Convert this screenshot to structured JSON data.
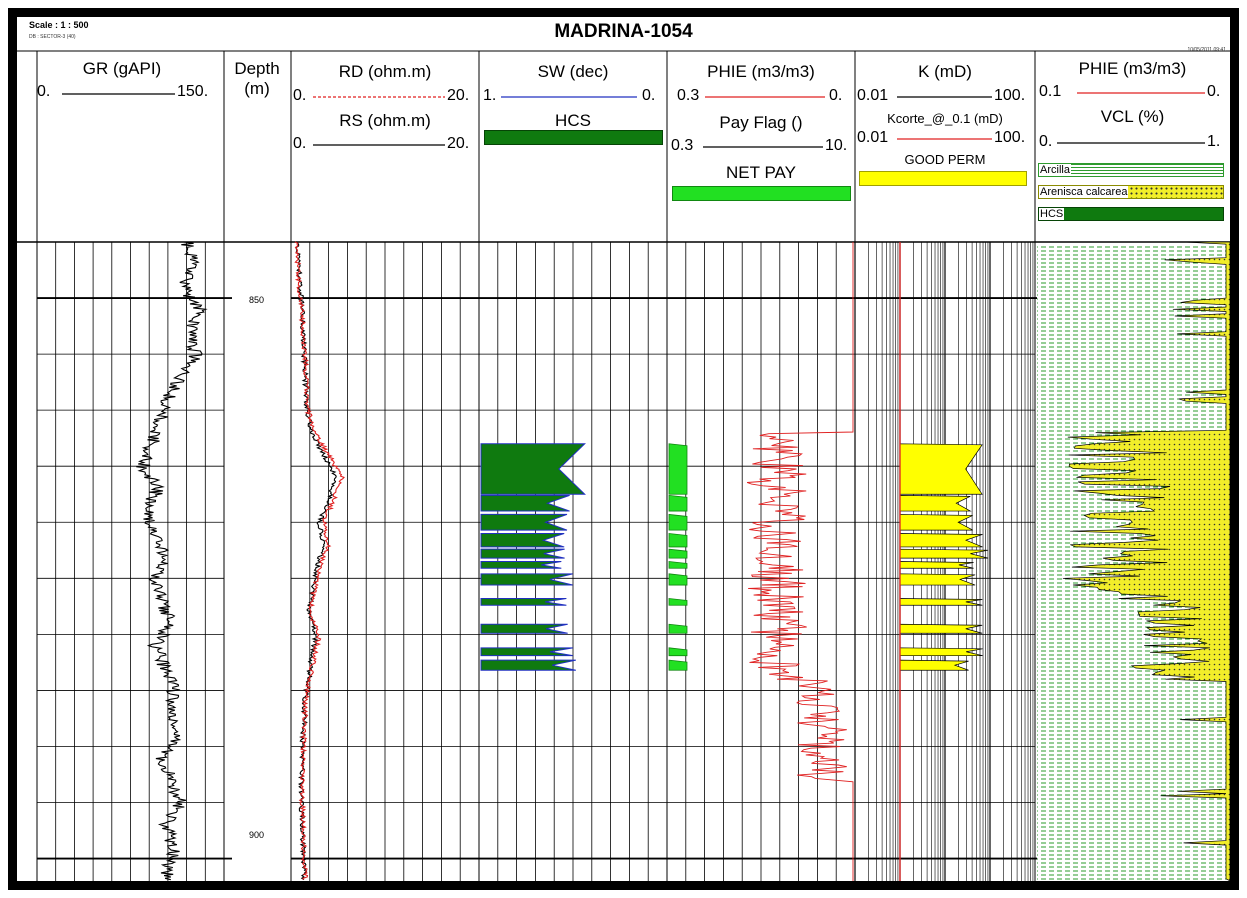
{
  "header": {
    "scale": "Scale : 1 : 500",
    "db": "DB : SECTOR-3 (40)",
    "title": "MADRINA-1054",
    "date": "10/05/2011 09:41"
  },
  "tracks": {
    "gr": {
      "label": "GR (gAPI)",
      "min": "0.",
      "max": "150."
    },
    "depth": {
      "label_line1": "Depth",
      "label_line2": "(m)"
    },
    "resist": {
      "rd_label": "RD (ohm.m)",
      "rd_min": "0.",
      "rd_max": "20.",
      "rs_label": "RS (ohm.m)",
      "rs_min": "0.",
      "rs_max": "20."
    },
    "sw": {
      "label": "SW (dec)",
      "min": "1.",
      "max": "0.",
      "fill_label": "HCS"
    },
    "phie": {
      "label": "PHIE (m3/m3)",
      "min": "0.3",
      "max": "0.",
      "pay_label": "Pay Flag ()",
      "pay_min": "0.3",
      "pay_max": "10.",
      "netpay_label": "NET PAY"
    },
    "perm": {
      "label": "K (mD)",
      "min": "0.01",
      "max": "100.",
      "kc_label": "Kcorte_@_0.1 (mD)",
      "kc_min": "0.01",
      "kc_max": "100.",
      "good_label": "GOOD PERM"
    },
    "lith": {
      "phie_label": "PHIE (m3/m3)",
      "phie_min": "0.1",
      "phie_max": "0.",
      "vcl_label": "VCL (%)",
      "vcl_min": "0.",
      "vcl_max": "1.",
      "legend": [
        "Arcilla",
        "Arenisca calcarea",
        "HCS"
      ]
    }
  },
  "colors": {
    "hcs": "#0f7a0f",
    "netpay": "#22e022",
    "goodperm": "#ffff00",
    "sand": "#f2ee2a",
    "shale": "#2e9b2e",
    "red": "#e02020",
    "blue": "#2030c0"
  },
  "chart_data": {
    "type": "line",
    "title": "MADRINA-1054",
    "xlabel": "",
    "ylabel": "Depth (m)",
    "ylim": [
      845,
      902
    ],
    "depth_ticks": [
      850,
      900
    ],
    "hcs_zones": [
      [
        863.0,
        867.5
      ],
      [
        867.6,
        869.0
      ],
      [
        869.3,
        870.7
      ],
      [
        871.0,
        872.2
      ],
      [
        872.4,
        873.2
      ],
      [
        873.5,
        874.1
      ],
      [
        874.6,
        875.6
      ],
      [
        876.8,
        877.4
      ],
      [
        879.1,
        879.9
      ],
      [
        881.2,
        881.9
      ],
      [
        882.3,
        883.2
      ]
    ],
    "series": [
      {
        "name": "GR (gAPI)",
        "depth": [
          845,
          847,
          849,
          851,
          853,
          855,
          857,
          859,
          861,
          863,
          865,
          867,
          869,
          871,
          873,
          875,
          877,
          879,
          881,
          883,
          885,
          887,
          889,
          891,
          893,
          895,
          897,
          899,
          901
        ],
        "values": [
          120,
          125,
          118,
          130,
          122,
          128,
          115,
          105,
          98,
          92,
          85,
          97,
          88,
          92,
          102,
          95,
          100,
          108,
          95,
          102,
          110,
          105,
          112,
          100,
          108,
          115,
          103,
          110,
          105
        ]
      },
      {
        "name": "RD (ohm.m)",
        "depth": [
          845,
          850,
          855,
          860,
          862,
          864,
          866,
          868,
          870,
          872,
          874,
          876,
          878,
          880,
          882,
          884,
          886,
          888,
          890,
          895,
          900,
          901
        ],
        "values": [
          0.5,
          1.0,
          1.5,
          1.8,
          2.5,
          4.0,
          5.5,
          4.5,
          3.5,
          4.0,
          3.0,
          2.5,
          2.0,
          3.0,
          2.5,
          2.0,
          1.5,
          1.5,
          1.3,
          1.2,
          1.4,
          1.5
        ]
      },
      {
        "name": "RS (ohm.m)",
        "depth": [
          845,
          850,
          855,
          860,
          862,
          864,
          866,
          868,
          870,
          872,
          874,
          876,
          878,
          880,
          882,
          884,
          886,
          888,
          890,
          895,
          900,
          901
        ],
        "values": [
          0.6,
          1.1,
          1.4,
          1.7,
          2.2,
          3.5,
          4.8,
          4.0,
          3.0,
          3.5,
          2.8,
          2.3,
          1.9,
          2.7,
          2.2,
          1.9,
          1.4,
          1.4,
          1.2,
          1.1,
          1.3,
          1.4
        ]
      }
    ]
  }
}
